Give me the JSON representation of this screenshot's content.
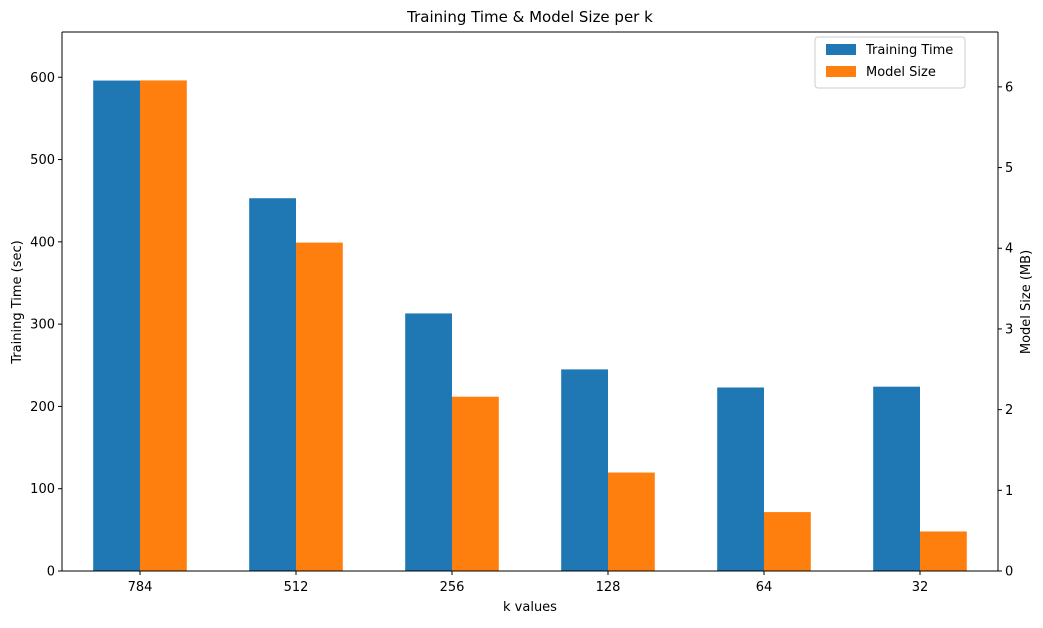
{
  "chart_data": {
    "type": "bar",
    "title": "Training Time & Model Size per k",
    "xlabel": "k values",
    "ylabel": "Training Time (sec)",
    "ylabel_right": "Model Size (MB)",
    "categories": [
      "784",
      "512",
      "256",
      "128",
      "64",
      "32"
    ],
    "series": [
      {
        "name": "Training Time",
        "axis": "left",
        "color": "#1f77b4",
        "values": [
          596,
          453,
          313,
          245,
          223,
          224
        ]
      },
      {
        "name": "Model Size",
        "axis": "right",
        "color": "#ff7f0e",
        "values": [
          6.08,
          4.07,
          2.16,
          1.22,
          0.73,
          0.49
        ]
      }
    ],
    "ylim": [
      0,
      655
    ],
    "ylim_right": [
      0,
      6.68
    ],
    "yticks": [
      0,
      100,
      200,
      300,
      400,
      500,
      600
    ],
    "yticks_right": [
      0,
      1,
      2,
      3,
      4,
      5,
      6
    ],
    "legend_position": "top-right",
    "grid": false
  }
}
